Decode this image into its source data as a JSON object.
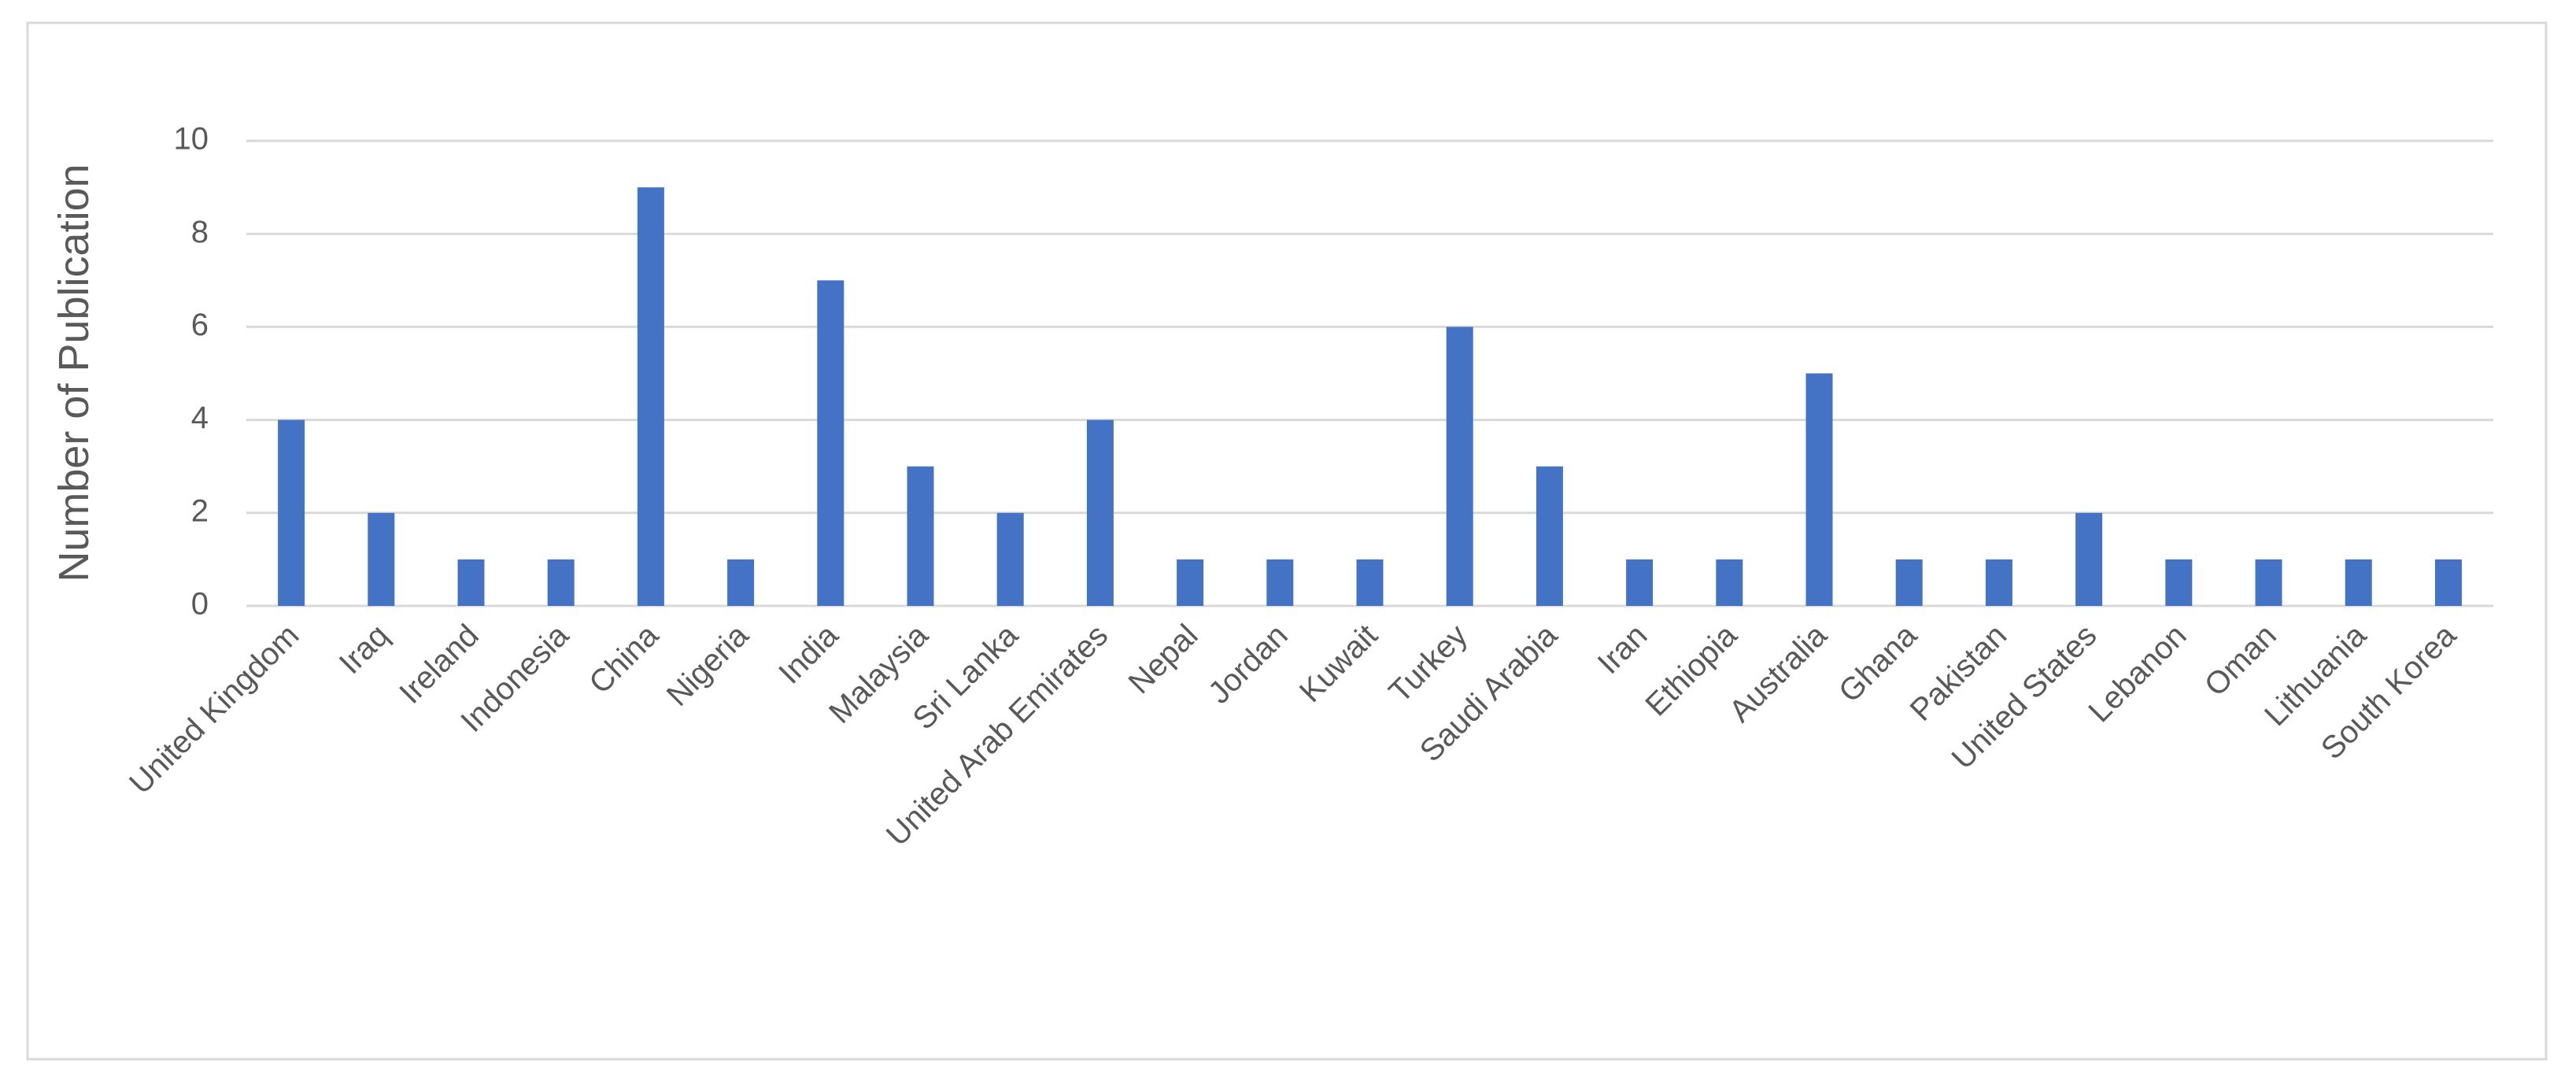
{
  "chart_data": {
    "type": "bar",
    "ylabel": "Number of Publication",
    "categories": [
      "United Kingdom",
      "Iraq",
      "Ireland",
      "Indonesia",
      "China",
      "Nigeria",
      "India",
      "Malaysia",
      "Sri Lanka",
      "United Arab Emirates",
      "Nepal",
      "Jordan",
      "Kuwait",
      "Turkey",
      "Saudi Arabia",
      "Iran",
      "Ethiopia",
      "Australia",
      "Ghana",
      "Pakistan",
      "United States",
      "Lebanon",
      "Oman",
      "Lithuania",
      "South Korea"
    ],
    "values": [
      4,
      2,
      1,
      1,
      9,
      1,
      7,
      3,
      2,
      4,
      1,
      1,
      1,
      6,
      3,
      1,
      1,
      5,
      1,
      1,
      2,
      1,
      1,
      1,
      1
    ],
    "color": "#4472c4",
    "ylim": [
      0,
      10
    ],
    "yticks": [
      0,
      2,
      4,
      6,
      8,
      10
    ],
    "grid": true
  }
}
